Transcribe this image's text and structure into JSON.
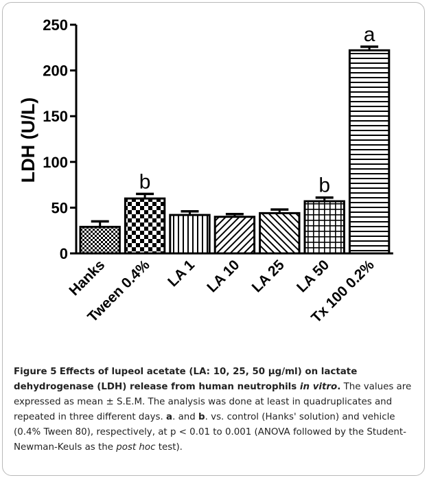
{
  "chart_data": {
    "type": "bar",
    "title": "",
    "ylabel": "LDH (U/L)",
    "xlabel": "",
    "ylim": [
      0,
      250
    ],
    "yticks": [
      0,
      50,
      100,
      150,
      200,
      250
    ],
    "categories": [
      "Hanks",
      "Tween 0.4%",
      "LA 1",
      "LA 10",
      "LA 25",
      "LA 50",
      "Tx 100 0.2%"
    ],
    "values": [
      29,
      60,
      42,
      40,
      44,
      57,
      222
    ],
    "errors": [
      6,
      5,
      4,
      3,
      4,
      4,
      4
    ],
    "annotations": [
      "",
      "b",
      "",
      "",
      "",
      "b",
      "a"
    ],
    "patterns": [
      "dots",
      "checker",
      "vertical",
      "diag-right",
      "diag-left",
      "grid",
      "horizontal"
    ]
  },
  "caption": {
    "label": "Figure 5",
    "title_a": "Effects of lupeol acetate (LA: 10, 25, 50 µg/ml) on lactate dehydrogenase (LDH) release from human neutrophils ",
    "title_italic": "in vitro",
    "title_end": ".",
    "body_1": " The values are expressed as mean ± S.E.M. The analysis was done at least in quadruplicates and repeated in three different days. ",
    "a_label": "a",
    "body_2": ". and ",
    "b_label": "b",
    "body_3": ". vs. control (Hanks' solution) and vehicle (0.4% Tween 80), respectively, at p < 0.01 to 0.001 (ANOVA followed by the Student-Newman-Keuls as the ",
    "body_italic": "post hoc",
    "body_4": " test)."
  }
}
